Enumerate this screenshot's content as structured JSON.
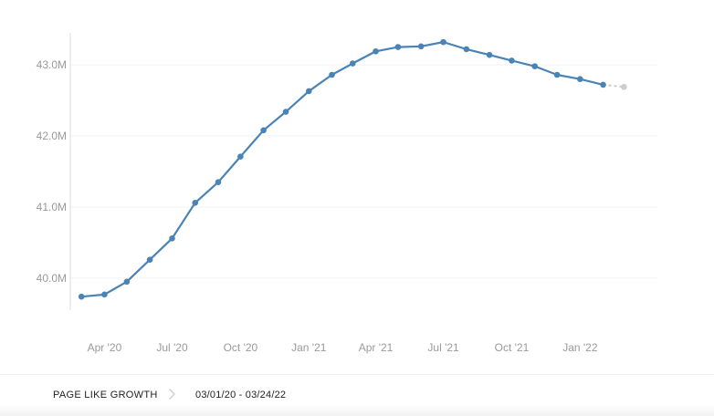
{
  "footer": {
    "title": "PAGE LIKE GROWTH",
    "separator_icon": "chevron-right-icon",
    "date_range": "03/01/20 - 03/24/22"
  },
  "colors": {
    "line": "#4a83b5",
    "projection": "#cccccc",
    "grid": "#f2f2f2",
    "axis": "#dddddd",
    "tick_text": "#9a9a9a"
  },
  "chart_data": {
    "type": "line",
    "title": "",
    "xlabel": "",
    "ylabel": "",
    "grid": true,
    "ylim": [
      39.55,
      43.45
    ],
    "yticks": [
      {
        "value": 40.0,
        "label": "40.0M"
      },
      {
        "value": 41.0,
        "label": "41.0M"
      },
      {
        "value": 42.0,
        "label": "42.0M"
      },
      {
        "value": 43.0,
        "label": "43.0M"
      }
    ],
    "xlim": [
      "2020-02-15",
      "2022-04-15"
    ],
    "xticks": [
      {
        "value": "2020-04-01",
        "label": "Apr '20"
      },
      {
        "value": "2020-07-01",
        "label": "Jul '20"
      },
      {
        "value": "2020-10-01",
        "label": "Oct '20"
      },
      {
        "value": "2021-01-01",
        "label": "Jan '21"
      },
      {
        "value": "2021-04-01",
        "label": "Apr '21"
      },
      {
        "value": "2021-07-01",
        "label": "Jul '21"
      },
      {
        "value": "2021-10-01",
        "label": "Oct '21"
      },
      {
        "value": "2022-01-01",
        "label": "Jan '22"
      }
    ],
    "series": [
      {
        "points": [
          {
            "x": "2020-03-01",
            "y": 39.74
          },
          {
            "x": "2020-04-01",
            "y": 39.77
          },
          {
            "x": "2020-05-01",
            "y": 39.95
          },
          {
            "x": "2020-06-01",
            "y": 40.26
          },
          {
            "x": "2020-07-01",
            "y": 40.56
          },
          {
            "x": "2020-08-01",
            "y": 41.06
          },
          {
            "x": "2020-09-01",
            "y": 41.35
          },
          {
            "x": "2020-10-01",
            "y": 41.71
          },
          {
            "x": "2020-11-01",
            "y": 42.08
          },
          {
            "x": "2020-12-01",
            "y": 42.34
          },
          {
            "x": "2021-01-01",
            "y": 42.63
          },
          {
            "x": "2021-02-01",
            "y": 42.86
          },
          {
            "x": "2021-03-01",
            "y": 43.02
          },
          {
            "x": "2021-04-01",
            "y": 43.19
          },
          {
            "x": "2021-05-01",
            "y": 43.25
          },
          {
            "x": "2021-06-01",
            "y": 43.26
          },
          {
            "x": "2021-07-01",
            "y": 43.32
          },
          {
            "x": "2021-08-01",
            "y": 43.22
          },
          {
            "x": "2021-09-01",
            "y": 43.14
          },
          {
            "x": "2021-10-01",
            "y": 43.06
          },
          {
            "x": "2021-11-01",
            "y": 42.98
          },
          {
            "x": "2021-12-01",
            "y": 42.86
          },
          {
            "x": "2022-01-01",
            "y": 42.8
          },
          {
            "x": "2022-02-01",
            "y": 42.72
          }
        ],
        "projected_point": {
          "x": "2022-03-01",
          "y": 42.69
        }
      }
    ]
  }
}
